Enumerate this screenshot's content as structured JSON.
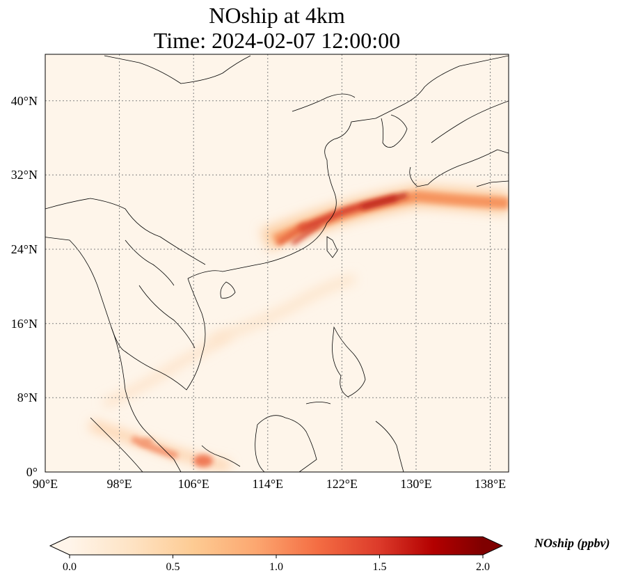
{
  "map": {
    "title_line1": "NOship at 4km",
    "title_line2": "Time: 2024-02-07 12:00:00",
    "lat_labels": [
      "40°N",
      "32°N",
      "24°N",
      "16°N",
      "8°N",
      "0°"
    ],
    "lon_labels": [
      "90°E",
      "98°E",
      "106°E",
      "114°E",
      "122°E",
      "130°E",
      "138°E"
    ],
    "extent": {
      "lon_min": 90,
      "lon_max": 140,
      "lat_min": 0,
      "lat_max": 45
    },
    "colormap": "OrRd",
    "colors": {
      "low": "#fff5ea",
      "mid": "#f36b3f",
      "high": "#7f0000"
    }
  },
  "colorbar": {
    "label": "NOship (ppbv)",
    "ticks": [
      "0.0",
      "0.5",
      "1.0",
      "1.5",
      "2.0"
    ],
    "range": [
      0.0,
      2.0
    ],
    "extend": "both"
  }
}
